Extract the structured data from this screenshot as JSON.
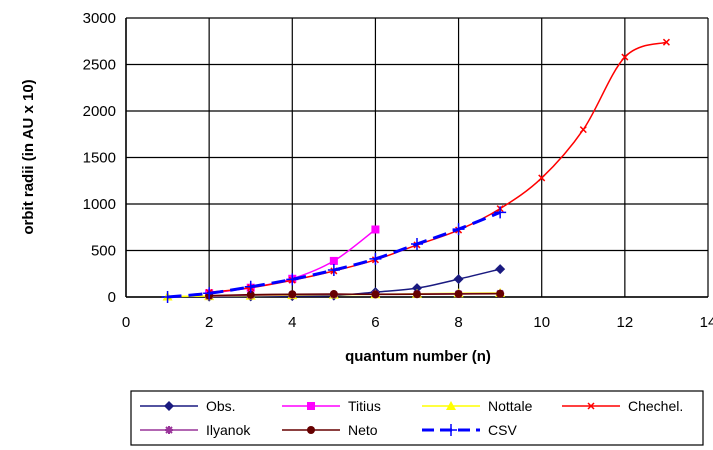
{
  "chart_data": {
    "type": "line",
    "title": "",
    "xlabel": "quantum number (n)",
    "ylabel": "orbit radii (in AU x 10)",
    "xlim": [
      0,
      14
    ],
    "ylim": [
      0,
      3000
    ],
    "xticks": [
      0,
      2,
      4,
      6,
      8,
      10,
      12,
      14
    ],
    "yticks": [
      0,
      500,
      1000,
      1500,
      2000,
      2500,
      3000
    ],
    "grid": true,
    "legend_position": "bottom",
    "series": [
      {
        "name": "Obs.",
        "color": "#1a1a80",
        "marker": "diamond",
        "dash": "solid",
        "x": [
          2,
          3,
          4,
          5,
          6,
          7,
          8,
          9
        ],
        "y": [
          4,
          7,
          10,
          15,
          52,
          95,
          192,
          300
        ]
      },
      {
        "name": "Titius",
        "color": "#ff00ff",
        "marker": "square",
        "dash": "solid",
        "x": [
          2,
          3,
          4,
          5,
          6
        ],
        "y": [
          40,
          100,
          196,
          388,
          726
        ]
      },
      {
        "name": "Nottale",
        "color": "#ffff00",
        "marker": "triangle",
        "dash": "solid",
        "x": [
          1,
          2,
          3,
          4,
          5,
          6,
          7,
          8,
          9
        ],
        "y": [
          5,
          10,
          15,
          20,
          25,
          30,
          35,
          40,
          45
        ]
      },
      {
        "name": "Chechel.",
        "color": "#ff0000",
        "marker": "x",
        "dash": "solid",
        "x": [
          2,
          3,
          4,
          5,
          6,
          7,
          8,
          9,
          10,
          11,
          12,
          13
        ],
        "y": [
          50,
          100,
          180,
          280,
          400,
          560,
          720,
          950,
          1280,
          1800,
          2580,
          2740
        ]
      },
      {
        "name": "Ilyanok",
        "color": "#993399",
        "marker": "star",
        "dash": "solid",
        "x": [
          2,
          3,
          4,
          5,
          6,
          7,
          8,
          9
        ],
        "y": [
          10,
          20,
          25,
          28,
          30,
          32,
          35,
          38
        ]
      },
      {
        "name": "Neto",
        "color": "#660000",
        "marker": "circle",
        "dash": "solid",
        "x": [
          2,
          3,
          4,
          5,
          6,
          7,
          8,
          9
        ],
        "y": [
          15,
          25,
          30,
          32,
          28,
          30,
          32,
          35
        ]
      },
      {
        "name": "CSV",
        "color": "#0000ff",
        "marker": "plus",
        "dash": "dashed",
        "x": [
          1,
          2,
          3,
          4,
          5,
          6,
          7,
          8,
          9
        ],
        "y": [
          0,
          40,
          110,
          190,
          290,
          410,
          570,
          730,
          910
        ]
      }
    ]
  }
}
